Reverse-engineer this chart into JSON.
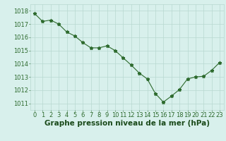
{
  "x": [
    0,
    1,
    2,
    3,
    4,
    5,
    6,
    7,
    8,
    9,
    10,
    11,
    12,
    13,
    14,
    15,
    16,
    17,
    18,
    19,
    20,
    21,
    22,
    23
  ],
  "y": [
    1017.8,
    1017.2,
    1017.3,
    1017.0,
    1016.4,
    1016.1,
    1015.6,
    1015.2,
    1015.2,
    1015.35,
    1015.0,
    1014.45,
    1013.9,
    1013.3,
    1012.85,
    1011.75,
    1011.1,
    1011.55,
    1012.05,
    1012.85,
    1013.0,
    1013.05,
    1013.5,
    1014.1
  ],
  "line_color": "#2d6a2d",
  "marker": "*",
  "marker_size": 3.5,
  "bg_color": "#d8f0ec",
  "grid_color": "#b8d8d0",
  "xlabel": "Graphe pression niveau de la mer (hPa)",
  "xlabel_color": "#1a4a1a",
  "ylim": [
    1010.5,
    1018.5
  ],
  "xlim": [
    -0.5,
    23.5
  ],
  "yticks": [
    1011,
    1012,
    1013,
    1014,
    1015,
    1016,
    1017,
    1018
  ],
  "xticks": [
    0,
    1,
    2,
    3,
    4,
    5,
    6,
    7,
    8,
    9,
    10,
    11,
    12,
    13,
    14,
    15,
    16,
    17,
    18,
    19,
    20,
    21,
    22,
    23
  ],
  "tick_color": "#2d6a2d",
  "label_fontsize": 6,
  "xlabel_fontsize": 7.5
}
